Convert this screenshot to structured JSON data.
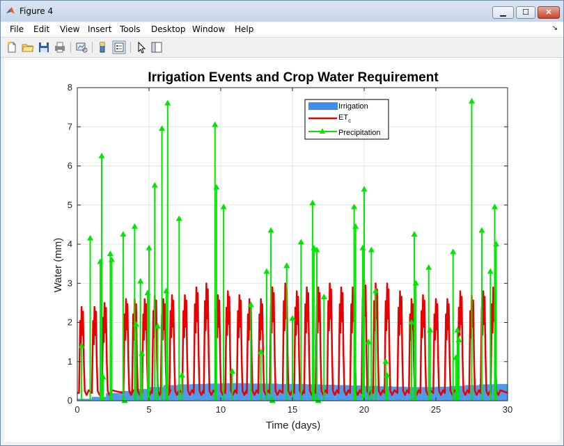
{
  "window": {
    "title": "Figure 4",
    "minimize_label": "▁",
    "maximize_label": "☐",
    "close_label": "✕"
  },
  "menu": {
    "items": [
      "File",
      "Edit",
      "View",
      "Insert",
      "Tools",
      "Desktop",
      "Window",
      "Help"
    ]
  },
  "toolbar": {
    "icons": [
      "new-figure-icon",
      "open-file-icon",
      "save-icon",
      "print-icon",
      "link-plot-icon",
      "colorbar-icon",
      "legend-icon",
      "pointer-icon",
      "property-editor-icon"
    ]
  },
  "chart_data": {
    "type": "line",
    "title": "Irrigation Events and Crop Water Requirement",
    "xlabel": "Time (days)",
    "ylabel": "Water (mm)",
    "xlim": [
      0,
      30
    ],
    "ylim": [
      0,
      8
    ],
    "xticks": [
      "0",
      "5",
      "10",
      "15",
      "20",
      "25",
      "30"
    ],
    "yticks": [
      "0",
      "1",
      "2",
      "3",
      "4",
      "5",
      "6",
      "7",
      "8"
    ],
    "grid": true,
    "legend_position": "top-right",
    "legend": [
      {
        "label": "Irrigation",
        "color": "#3d8fe8",
        "kind": "bar"
      },
      {
        "label": "ET",
        "sub": "c",
        "color": "#e80000",
        "kind": "line"
      },
      {
        "label": "Precipitation",
        "color": "#00e600",
        "kind": "stem"
      }
    ],
    "series": [
      {
        "name": "Irrigation",
        "type": "bar",
        "color": "#3d8fe8",
        "x": [
          0,
          1,
          2,
          3,
          4,
          5,
          6,
          7,
          8,
          9,
          10,
          11,
          12,
          13,
          14,
          15,
          16,
          17,
          18,
          19,
          20,
          21,
          22,
          23,
          24,
          25,
          26,
          27,
          28,
          29
        ],
        "values": [
          0.05,
          0.1,
          0.2,
          0.25,
          0.3,
          0.35,
          0.4,
          0.42,
          0.43,
          0.44,
          0.45,
          0.45,
          0.44,
          0.44,
          0.43,
          0.43,
          0.42,
          0.41,
          0.4,
          0.39,
          0.38,
          0.37,
          0.36,
          0.35,
          0.35,
          0.36,
          0.38,
          0.4,
          0.42,
          0.43
        ]
      },
      {
        "name": "ETc",
        "type": "line",
        "color": "#e80000",
        "peak_days": [
          0.3,
          1.2,
          1.9,
          3.4,
          4.0,
          4.7,
          5.4,
          6.0,
          6.6,
          7.5,
          8.3,
          9.0,
          9.8,
          10.5,
          11.3,
          12.0,
          12.8,
          13.6,
          14.5,
          15.3,
          16.0,
          16.8,
          17.6,
          18.4,
          19.2,
          20.0,
          20.8,
          21.6,
          22.5,
          23.3,
          24.1,
          25.0,
          25.8,
          26.7,
          27.5,
          28.3,
          29.0
        ],
        "peak_values": [
          2.4,
          2.4,
          2.5,
          2.6,
          2.6,
          2.6,
          2.7,
          2.6,
          2.7,
          2.7,
          2.9,
          3.0,
          2.7,
          2.8,
          2.7,
          2.6,
          2.6,
          2.9,
          3.0,
          2.8,
          2.9,
          2.9,
          3.0,
          2.9,
          2.9,
          3.1,
          3.0,
          3.0,
          2.8,
          2.6,
          2.7,
          2.6,
          2.6,
          2.8,
          2.7,
          2.8,
          2.9
        ],
        "base": 0.15
      },
      {
        "name": "Precipitation",
        "type": "stem",
        "color": "#00e600",
        "x": [
          0.3,
          0.9,
          1.6,
          1.7,
          1.8,
          2.3,
          2.4,
          3.2,
          3.3,
          4.0,
          4.1,
          4.4,
          4.5,
          4.9,
          5.0,
          5.4,
          5.6,
          5.9,
          6.2,
          6.3,
          7.1,
          7.3,
          9.6,
          9.7,
          10.2,
          10.8,
          12.1,
          12.8,
          13.2,
          13.5,
          13.6,
          14.6,
          15.0,
          15.6,
          16.4,
          16.5,
          16.7,
          16.8,
          17.2,
          19.3,
          19.4,
          19.9,
          20.0,
          20.3,
          20.5,
          20.8,
          21.5,
          21.6,
          23.3,
          23.5,
          23.6,
          24.5,
          24.6,
          26.2,
          26.4,
          26.5,
          26.6,
          27.5,
          28.2,
          28.8,
          29.1,
          29.2
        ],
        "values": [
          1.4,
          4.15,
          3.55,
          6.25,
          0.6,
          3.75,
          3.6,
          4.25,
          0.0,
          4.45,
          1.95,
          3.05,
          1.2,
          2.75,
          3.9,
          5.5,
          1.9,
          6.95,
          2.8,
          7.6,
          4.65,
          0.65,
          7.05,
          5.45,
          4.95,
          0.75,
          2.45,
          1.25,
          3.3,
          4.35,
          0.0,
          3.45,
          2.1,
          4.05,
          5.05,
          3.9,
          3.85,
          0.0,
          2.65,
          4.95,
          4.45,
          3.9,
          5.4,
          1.5,
          3.85,
          2.8,
          1.0,
          0.65,
          2.0,
          4.25,
          3.0,
          3.4,
          1.8,
          3.8,
          1.1,
          1.8,
          1.55,
          7.65,
          4.35,
          3.3,
          4.95,
          4.0
        ]
      }
    ]
  }
}
